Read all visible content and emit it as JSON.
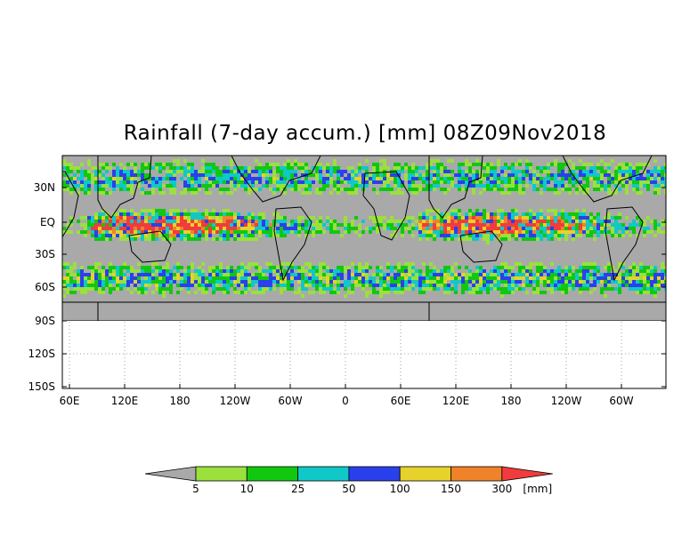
{
  "title": "Rainfall (7-day accum.) [mm] 08Z09Nov2018",
  "y_axis_labels": [
    "30N",
    "EQ",
    "30S",
    "60S",
    "90S",
    "120S",
    "150S"
  ],
  "x_axis_labels": [
    "60E",
    "120E",
    "180",
    "120W",
    "60W",
    "0",
    "60E",
    "120E",
    "180",
    "120W",
    "60W"
  ],
  "colorbar": {
    "boundaries": [
      "5",
      "10",
      "25",
      "50",
      "100",
      "150",
      "300"
    ],
    "unit": "[mm]",
    "colors": [
      "#a9a9a9",
      "#9be03c",
      "#10c810",
      "#10c8c8",
      "#2a40ec",
      "#e6d22a",
      "#f0822a",
      "#f03c3c"
    ]
  },
  "colors": {
    "no_rain_gray": "#a9a9a9",
    "coastline": "#000000",
    "grid_dots": "#a0a0a0"
  }
}
